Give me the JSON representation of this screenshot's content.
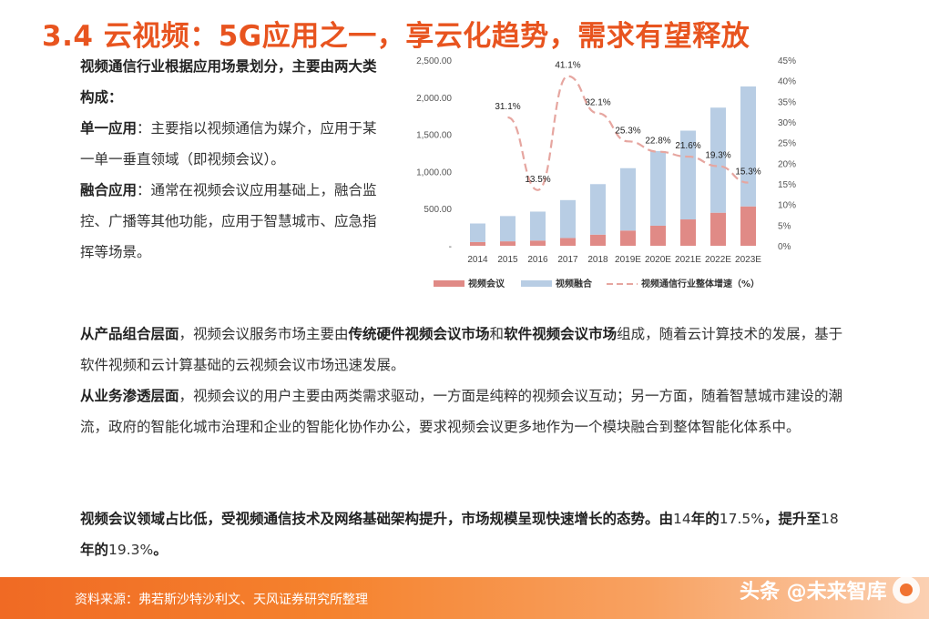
{
  "title": "3.4 云视频：5G应用之一，享云化趋势，需求有望释放",
  "left": {
    "intro": "视频通信行业根据应用场景划分，主要由两大类构成：",
    "single_label": "单一应用",
    "single_text": "：主要指以视频通信为媒介，应用于某一单一垂直领域（即视频会议）。",
    "fusion_label": "融合应用",
    "fusion_text": "：通常在视频会议应用基础上，融合监控、广播等其他功能，应用于智慧城市、应急指挥等场景。"
  },
  "para1": {
    "b1": "从产品组合层面",
    "t1": "，视频会议服务市场主要由",
    "b2": "传统硬件视频会议市场",
    "t2": "和",
    "b3": "软件视频会议市场",
    "t3": "组成，随着云计算技术的发展，基于软件视频和云计算基础的云视频会议市场迅速发展。"
  },
  "para2": {
    "b1": "从业务渗透层面",
    "t1": "，视频会议的用户主要由两类需求驱动，一方面是纯粹的视频会议互动；另一方面，随着智慧城市建设的潮流，政府的智能化城市治理和企业的智能化协作办公，要求视频会议更多地作为一个模块融合到整体智能化体系中。"
  },
  "para3": {
    "b1": "视频会议领域占比低，受视频通信技术及网络基础架构提升，市场规模呈现快速增长的态势。由",
    "n1": "14",
    "b2": "年的",
    "n2": "17.5%",
    "b3": "，提升至",
    "n3": "18",
    "b4": "年的",
    "n4": "19.3%",
    "b5": "。"
  },
  "footer": {
    "source": "资料来源：弗若斯沙特沙利文、天风证券研究所整理",
    "watermark": "头条 @未来智库"
  },
  "chart_data": {
    "type": "bar",
    "categories": [
      "2014",
      "2015",
      "2016",
      "2017",
      "2018",
      "2019E",
      "2020E",
      "2021E",
      "2022E",
      "2023E"
    ],
    "series": [
      {
        "name": "视频会议",
        "values": [
          50,
          60,
          70,
          105,
          150,
          205,
          270,
          355,
          445,
          530
        ],
        "color": "#e08a86"
      },
      {
        "name": "视频融合",
        "values": [
          250,
          340,
          390,
          510,
          680,
          840,
          1005,
          1195,
          1415,
          1615
        ],
        "color": "#b8cde4"
      }
    ],
    "line": {
      "name": "视频通信行业整体增速（%）",
      "values": [
        null,
        31.1,
        13.5,
        41.1,
        32.1,
        25.3,
        22.8,
        21.6,
        19.3,
        15.3
      ],
      "color": "#e6a6a0"
    },
    "line_labels": [
      "",
      "31.1%",
      "13.5%",
      "41.1%",
      "32.1%",
      "25.3%",
      "22.8%",
      "21.6%",
      "19.3%",
      "15.3%"
    ],
    "y_left_ticks": [
      "2,500.00",
      "2,000.00",
      "1,500.00",
      "1,000.00",
      "500.00",
      "-"
    ],
    "y_left_range": [
      0,
      2500
    ],
    "y_right_ticks": [
      "45%",
      "40%",
      "35%",
      "30%",
      "25%",
      "20%",
      "15%",
      "10%",
      "5%",
      "0%"
    ],
    "y_right_range": [
      0,
      45
    ],
    "legend_position": "bottom"
  }
}
